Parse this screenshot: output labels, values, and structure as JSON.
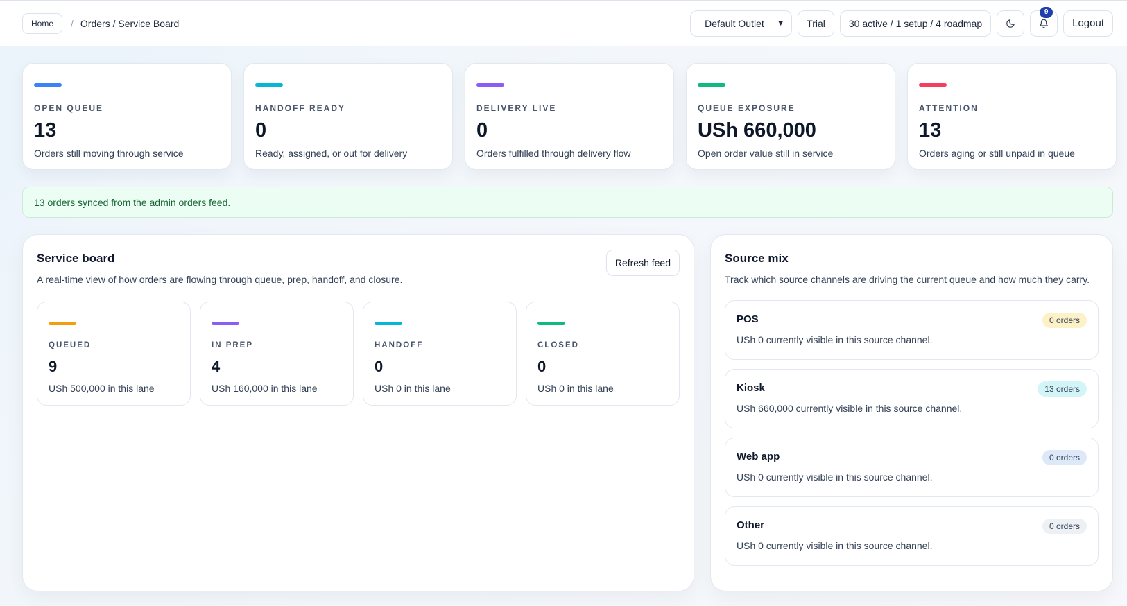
{
  "header": {
    "breadcrumb_home": "Home",
    "breadcrumb_current": "Orders / Service Board",
    "outlet_selected": "Default Outlet",
    "plan": "Trial",
    "modules": "30 active / 1 setup / 4 roadmap",
    "notification_count": "9",
    "logout": "Logout"
  },
  "kpis": [
    {
      "label": "OPEN QUEUE",
      "value": "13",
      "desc": "Orders still moving through service",
      "color": "#3b82f6"
    },
    {
      "label": "HANDOFF READY",
      "value": "0",
      "desc": "Ready, assigned, or out for delivery",
      "color": "#06b6d4"
    },
    {
      "label": "DELIVERY LIVE",
      "value": "0",
      "desc": "Orders fulfilled through delivery flow",
      "color": "#8b5cf6"
    },
    {
      "label": "QUEUE EXPOSURE",
      "value": "USh 660,000",
      "desc": "Open order value still in service",
      "color": "#10b981"
    },
    {
      "label": "ATTENTION",
      "value": "13",
      "desc": "Orders aging or still unpaid in queue",
      "color": "#f43f5e"
    }
  ],
  "alert": "13 orders synced from the admin orders feed.",
  "service_board": {
    "title": "Service board",
    "subtitle": "A real-time view of how orders are flowing through queue, prep, handoff, and closure.",
    "refresh_label": "Refresh feed",
    "lanes": [
      {
        "label": "QUEUED",
        "value": "9",
        "desc": "USh 500,000 in this lane",
        "color": "#f59e0b"
      },
      {
        "label": "IN PREP",
        "value": "4",
        "desc": "USh 160,000 in this lane",
        "color": "#8b5cf6"
      },
      {
        "label": "HANDOFF",
        "value": "0",
        "desc": "USh 0 in this lane",
        "color": "#06b6d4"
      },
      {
        "label": "CLOSED",
        "value": "0",
        "desc": "USh 0 in this lane",
        "color": "#10b981"
      }
    ]
  },
  "source_mix": {
    "title": "Source mix",
    "subtitle": "Track which source channels are driving the current queue and how much they carry.",
    "sources": [
      {
        "name": "POS",
        "badge": "0 orders",
        "desc": "USh 0 currently visible in this source channel.",
        "badge_bg": "#fdf1c7"
      },
      {
        "name": "Kiosk",
        "badge": "13 orders",
        "desc": "USh 660,000 currently visible in this source channel.",
        "badge_bg": "#d4f5f7"
      },
      {
        "name": "Web app",
        "badge": "0 orders",
        "desc": "USh 0 currently visible in this source channel.",
        "badge_bg": "#dde9f8"
      },
      {
        "name": "Other",
        "badge": "0 orders",
        "desc": "USh 0 currently visible in this source channel.",
        "badge_bg": "#eef1f4"
      }
    ]
  }
}
